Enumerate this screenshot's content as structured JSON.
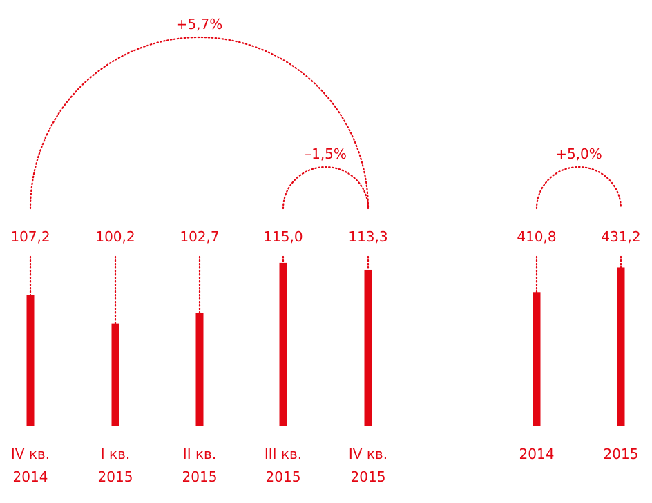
{
  "chart_data": {
    "type": "bar",
    "color": "#e30613",
    "groups": [
      {
        "categories": [
          {
            "line1": "IV кв.",
            "line2": "2014"
          },
          {
            "line1": "I кв.",
            "line2": "2015"
          },
          {
            "line1": "II кв.",
            "line2": "2015"
          },
          {
            "line1": "III кв.",
            "line2": "2015"
          },
          {
            "line1": "IV кв.",
            "line2": "2015"
          }
        ],
        "values": [
          107.2,
          100.2,
          102.7,
          115.0,
          113.3
        ],
        "value_labels": [
          "107,2",
          "100,2",
          "102,7",
          "115,0",
          "113,3"
        ],
        "ylim": [
          75,
          116.5
        ]
      },
      {
        "categories": [
          {
            "line1": "2014",
            "line2": ""
          },
          {
            "line1": "2015",
            "line2": ""
          }
        ],
        "values": [
          410.8,
          431.2
        ],
        "value_labels": [
          "410,8",
          "431,2"
        ],
        "ylim": [
          300,
          440
        ]
      }
    ],
    "annotations": [
      {
        "label": "+5,7%",
        "group": 0,
        "from": 0,
        "to": 4
      },
      {
        "label": "–1,5%",
        "group": 0,
        "from": 3,
        "to": 4
      },
      {
        "label": "+5,0%",
        "group": 1,
        "from": 0,
        "to": 1
      }
    ]
  }
}
